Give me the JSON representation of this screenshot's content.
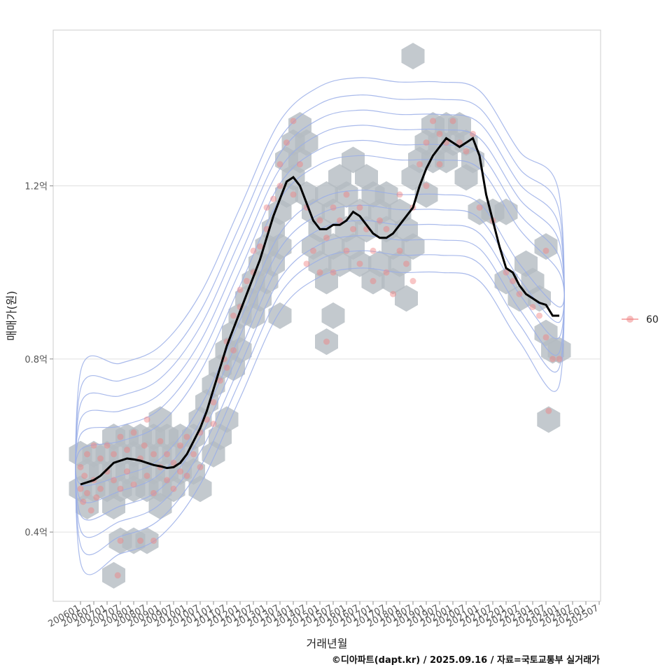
{
  "chart_data": {
    "type": "scatter",
    "xlabel": "거래년월",
    "ylabel": "매매가(원)",
    "caption": "©디아파트(dapt.kr) / 2025.09.16 / 자료=국토교통부 실거래가",
    "y_ticks": [
      {
        "value": 0.4,
        "label": "0.4억"
      },
      {
        "value": 0.8,
        "label": "0.8억"
      },
      {
        "value": 1.2,
        "label": "1.2억"
      }
    ],
    "ylim": [
      0.24,
      1.56
    ],
    "x_ticks": [
      "200601",
      "200607",
      "200701",
      "200707",
      "200801",
      "200807",
      "200901",
      "200907",
      "201001",
      "201007",
      "201101",
      "201107",
      "201201",
      "201207",
      "201301",
      "201307",
      "201401",
      "201407",
      "201501",
      "201507",
      "201601",
      "201607",
      "201701",
      "201707",
      "201801",
      "201807",
      "201901",
      "201907",
      "202001",
      "202007",
      "202101",
      "202107",
      "202201",
      "202207",
      "202301",
      "202307",
      "202401",
      "202407",
      "202501",
      "202507"
    ],
    "legend": {
      "label": "60",
      "color": "#f08080"
    },
    "trend_color": "#000000",
    "contour_color": "#9aaee8",
    "hex_color": "#b4bcc2",
    "trend_line": [
      [
        0,
        0.51
      ],
      [
        0.5,
        0.515
      ],
      [
        1,
        0.52
      ],
      [
        1.5,
        0.53
      ],
      [
        2,
        0.545
      ],
      [
        2.5,
        0.56
      ],
      [
        3,
        0.565
      ],
      [
        3.5,
        0.57
      ],
      [
        4,
        0.568
      ],
      [
        4.5,
        0.565
      ],
      [
        5,
        0.56
      ],
      [
        5.5,
        0.555
      ],
      [
        6,
        0.552
      ],
      [
        6.5,
        0.548
      ],
      [
        7,
        0.55
      ],
      [
        7.5,
        0.56
      ],
      [
        8,
        0.58
      ],
      [
        8.5,
        0.61
      ],
      [
        9,
        0.64
      ],
      [
        9.5,
        0.68
      ],
      [
        10,
        0.73
      ],
      [
        10.5,
        0.78
      ],
      [
        11,
        0.83
      ],
      [
        11.5,
        0.87
      ],
      [
        12,
        0.91
      ],
      [
        12.5,
        0.95
      ],
      [
        13,
        0.99
      ],
      [
        13.5,
        1.03
      ],
      [
        14,
        1.08
      ],
      [
        14.5,
        1.13
      ],
      [
        15,
        1.17
      ],
      [
        15.5,
        1.21
      ],
      [
        16,
        1.22
      ],
      [
        16.5,
        1.2
      ],
      [
        17,
        1.16
      ],
      [
        17.5,
        1.12
      ],
      [
        18,
        1.1
      ],
      [
        18.5,
        1.1
      ],
      [
        19,
        1.11
      ],
      [
        19.5,
        1.11
      ],
      [
        20,
        1.12
      ],
      [
        20.5,
        1.14
      ],
      [
        21,
        1.13
      ],
      [
        21.5,
        1.11
      ],
      [
        22,
        1.09
      ],
      [
        22.5,
        1.08
      ],
      [
        23,
        1.08
      ],
      [
        23.5,
        1.09
      ],
      [
        24,
        1.11
      ],
      [
        24.5,
        1.13
      ],
      [
        25,
        1.15
      ],
      [
        25.5,
        1.2
      ],
      [
        26,
        1.24
      ],
      [
        26.5,
        1.27
      ],
      [
        27,
        1.29
      ],
      [
        27.5,
        1.31
      ],
      [
        28,
        1.3
      ],
      [
        28.5,
        1.29
      ],
      [
        29,
        1.3
      ],
      [
        29.5,
        1.31
      ],
      [
        30,
        1.27
      ],
      [
        30.5,
        1.18
      ],
      [
        31,
        1.12
      ],
      [
        31.5,
        1.06
      ],
      [
        32,
        1.01
      ],
      [
        32.5,
        1.0
      ],
      [
        33,
        0.97
      ],
      [
        33.5,
        0.95
      ],
      [
        34,
        0.94
      ],
      [
        34.5,
        0.93
      ],
      [
        35,
        0.925
      ],
      [
        35.5,
        0.9
      ],
      [
        36,
        0.9
      ]
    ],
    "scatter_points": [
      [
        0,
        0.55
      ],
      [
        0,
        0.5
      ],
      [
        0.2,
        0.47
      ],
      [
        0.3,
        0.53
      ],
      [
        0.5,
        0.58
      ],
      [
        0.5,
        0.49
      ],
      [
        0.8,
        0.45
      ],
      [
        1,
        0.6
      ],
      [
        1,
        0.52
      ],
      [
        1.2,
        0.48
      ],
      [
        1.5,
        0.57
      ],
      [
        1.5,
        0.5
      ],
      [
        2,
        0.54
      ],
      [
        2,
        0.6
      ],
      [
        2.5,
        0.58
      ],
      [
        2.5,
        0.52
      ],
      [
        3,
        0.62
      ],
      [
        3,
        0.5
      ],
      [
        3.5,
        0.59
      ],
      [
        3.5,
        0.54
      ],
      [
        4,
        0.63
      ],
      [
        4,
        0.51
      ],
      [
        4.5,
        0.57
      ],
      [
        4.8,
        0.6
      ],
      [
        5,
        0.66
      ],
      [
        5,
        0.53
      ],
      [
        5.5,
        0.49
      ],
      [
        5.5,
        0.58
      ],
      [
        6,
        0.55
      ],
      [
        6,
        0.61
      ],
      [
        6.5,
        0.52
      ],
      [
        6.5,
        0.58
      ],
      [
        7,
        0.56
      ],
      [
        7,
        0.5
      ],
      [
        7.5,
        0.6
      ],
      [
        7.5,
        0.54
      ],
      [
        8,
        0.62
      ],
      [
        8,
        0.53
      ],
      [
        8.5,
        0.58
      ],
      [
        9,
        0.63
      ],
      [
        9,
        0.55
      ],
      [
        9.5,
        0.66
      ],
      [
        10,
        0.7
      ],
      [
        10,
        0.65
      ],
      [
        10.5,
        0.75
      ],
      [
        10.8,
        0.8
      ],
      [
        11,
        0.84
      ],
      [
        11,
        0.78
      ],
      [
        11.5,
        0.9
      ],
      [
        11.5,
        0.82
      ],
      [
        12,
        0.92
      ],
      [
        12,
        0.96
      ],
      [
        12.5,
        0.98
      ],
      [
        13,
        1.0
      ],
      [
        13,
        1.05
      ],
      [
        13.5,
        1.06
      ],
      [
        14,
        1.1
      ],
      [
        14,
        1.15
      ],
      [
        14.5,
        1.17
      ],
      [
        15,
        1.2
      ],
      [
        15,
        1.25
      ],
      [
        15.5,
        1.3
      ],
      [
        16,
        1.35
      ],
      [
        16,
        1.18
      ],
      [
        16.5,
        1.25
      ],
      [
        17,
        1.15
      ],
      [
        17,
        1.02
      ],
      [
        17.5,
        1.05
      ],
      [
        18,
        1.12
      ],
      [
        18,
        1.0
      ],
      [
        18.5,
        1.08
      ],
      [
        19,
        1.15
      ],
      [
        19,
        1.0
      ],
      [
        19.5,
        1.12
      ],
      [
        20,
        1.18
      ],
      [
        20,
        1.05
      ],
      [
        20.5,
        1.1
      ],
      [
        21,
        1.02
      ],
      [
        21,
        1.15
      ],
      [
        21.5,
        1.1
      ],
      [
        22,
        1.05
      ],
      [
        22,
        0.98
      ],
      [
        22.5,
        1.12
      ],
      [
        23,
        1.0
      ],
      [
        23,
        1.1
      ],
      [
        23.5,
        0.95
      ],
      [
        24,
        1.18
      ],
      [
        24,
        1.05
      ],
      [
        24.5,
        1.02
      ],
      [
        25,
        1.15
      ],
      [
        25,
        0.98
      ],
      [
        25.5,
        1.25
      ],
      [
        26,
        1.3
      ],
      [
        26,
        1.2
      ],
      [
        26.5,
        1.35
      ],
      [
        27,
        1.32
      ],
      [
        27,
        1.25
      ],
      [
        27.5,
        1.3
      ],
      [
        28,
        1.35
      ],
      [
        28.5,
        1.3
      ],
      [
        29,
        1.28
      ],
      [
        29.5,
        1.32
      ],
      [
        30,
        1.15
      ],
      [
        31,
        1.12
      ],
      [
        32,
        1.0
      ],
      [
        32.5,
        0.98
      ],
      [
        33,
        0.95
      ],
      [
        34,
        0.92
      ],
      [
        34.5,
        0.9
      ],
      [
        35,
        0.85
      ],
      [
        35,
        1.05
      ],
      [
        35.5,
        0.8
      ],
      [
        36,
        0.8
      ],
      [
        35.2,
        0.68
      ],
      [
        18.5,
        0.84
      ],
      [
        2.8,
        0.3
      ],
      [
        3,
        0.38
      ],
      [
        4.5,
        0.38
      ],
      [
        5.5,
        0.38
      ]
    ],
    "hex_centers": [
      [
        0,
        0.58
      ],
      [
        0,
        0.5
      ],
      [
        0.5,
        0.54
      ],
      [
        0.5,
        0.46
      ],
      [
        1,
        0.58
      ],
      [
        1,
        0.5
      ],
      [
        1.5,
        0.54
      ],
      [
        2,
        0.58
      ],
      [
        2,
        0.5
      ],
      [
        2.5,
        0.62
      ],
      [
        2.5,
        0.54
      ],
      [
        3,
        0.58
      ],
      [
        3,
        0.5
      ],
      [
        3.5,
        0.62
      ],
      [
        3.5,
        0.54
      ],
      [
        4,
        0.58
      ],
      [
        4,
        0.5
      ],
      [
        4.5,
        0.62
      ],
      [
        4.5,
        0.54
      ],
      [
        5,
        0.58
      ],
      [
        5,
        0.5
      ],
      [
        5.5,
        0.62
      ],
      [
        5.5,
        0.54
      ],
      [
        6,
        0.58
      ],
      [
        6,
        0.5
      ],
      [
        6.5,
        0.62
      ],
      [
        6.5,
        0.54
      ],
      [
        7,
        0.58
      ],
      [
        7,
        0.5
      ],
      [
        7.5,
        0.62
      ],
      [
        7.5,
        0.54
      ],
      [
        8,
        0.58
      ],
      [
        8.5,
        0.62
      ],
      [
        8.5,
        0.54
      ],
      [
        2.5,
        0.46
      ],
      [
        2.5,
        0.3
      ],
      [
        3,
        0.38
      ],
      [
        4,
        0.38
      ],
      [
        5,
        0.38
      ],
      [
        6,
        0.66
      ],
      [
        6,
        0.46
      ],
      [
        9,
        0.66
      ],
      [
        9,
        0.5
      ],
      [
        9.5,
        0.7
      ],
      [
        10,
        0.74
      ],
      [
        10,
        0.58
      ],
      [
        10.5,
        0.78
      ],
      [
        10.5,
        0.62
      ],
      [
        11,
        0.82
      ],
      [
        11,
        0.66
      ],
      [
        11.5,
        0.86
      ],
      [
        11.5,
        0.78
      ],
      [
        12,
        0.9
      ],
      [
        12,
        0.82
      ],
      [
        12.5,
        0.94
      ],
      [
        13,
        0.98
      ],
      [
        13,
        0.9
      ],
      [
        13.5,
        1.02
      ],
      [
        13.5,
        0.94
      ],
      [
        14,
        1.06
      ],
      [
        14,
        0.98
      ],
      [
        14.5,
        1.1
      ],
      [
        14.5,
        1.02
      ],
      [
        15,
        1.14
      ],
      [
        15,
        1.06
      ],
      [
        15.5,
        1.18
      ],
      [
        15.5,
        1.26
      ],
      [
        16,
        1.3
      ],
      [
        16,
        1.22
      ],
      [
        16.5,
        1.34
      ],
      [
        16.5,
        1.26
      ],
      [
        17,
        1.3
      ],
      [
        17,
        1.18
      ],
      [
        17.5,
        1.14
      ],
      [
        17.5,
        1.06
      ],
      [
        18,
        1.1
      ],
      [
        18,
        1.02
      ],
      [
        18.5,
        1.18
      ],
      [
        18.5,
        0.98
      ],
      [
        19,
        1.14
      ],
      [
        19,
        1.06
      ],
      [
        19.5,
        1.22
      ],
      [
        19.5,
        1.02
      ],
      [
        20,
        1.18
      ],
      [
        20,
        1.1
      ],
      [
        20.5,
        1.26
      ],
      [
        20.5,
        1.06
      ],
      [
        21,
        1.14
      ],
      [
        21,
        1.02
      ],
      [
        21.5,
        1.22
      ],
      [
        21.5,
        1.1
      ],
      [
        22,
        1.18
      ],
      [
        22,
        0.98
      ],
      [
        22.5,
        1.14
      ],
      [
        22.5,
        1.02
      ],
      [
        23,
        1.1
      ],
      [
        23,
        1.18
      ],
      [
        23.5,
        1.06
      ],
      [
        23.5,
        0.98
      ],
      [
        24,
        1.14
      ],
      [
        24,
        1.02
      ],
      [
        24.5,
        1.1
      ],
      [
        24.5,
        0.94
      ],
      [
        25,
        1.22
      ],
      [
        25,
        1.06
      ],
      [
        25.5,
        1.26
      ],
      [
        26,
        1.3
      ],
      [
        26,
        1.18
      ],
      [
        26.5,
        1.34
      ],
      [
        26.5,
        1.26
      ],
      [
        27,
        1.3
      ],
      [
        27.5,
        1.34
      ],
      [
        27.5,
        1.26
      ],
      [
        28,
        1.3
      ],
      [
        28.5,
        1.34
      ],
      [
        29,
        1.3
      ],
      [
        29,
        1.22
      ],
      [
        29.5,
        1.26
      ],
      [
        30,
        1.14
      ],
      [
        31,
        1.14
      ],
      [
        32,
        1.14
      ],
      [
        32,
        0.98
      ],
      [
        33,
        0.94
      ],
      [
        33.5,
        1.02
      ],
      [
        34,
        0.98
      ],
      [
        34.5,
        0.94
      ],
      [
        35,
        0.86
      ],
      [
        35,
        1.06
      ],
      [
        35.5,
        0.82
      ],
      [
        36,
        0.82
      ],
      [
        35.2,
        0.66
      ],
      [
        25,
        1.5
      ],
      [
        19,
        0.9
      ],
      [
        18.5,
        0.84
      ],
      [
        15,
        0.9
      ]
    ],
    "contours": [
      {
        "cy": [
          0.55,
          0.57,
          0.61,
          0.73,
          0.93,
          1.13,
          1.21,
          1.23,
          1.22,
          1.22,
          1.2,
          1.06,
          0.96
        ],
        "hw": 0.04
      },
      {
        "cy": [
          0.55,
          0.57,
          0.61,
          0.73,
          0.93,
          1.13,
          1.21,
          1.23,
          1.22,
          1.22,
          1.2,
          1.06,
          0.96
        ],
        "hw": 0.075
      },
      {
        "cy": [
          0.55,
          0.57,
          0.61,
          0.73,
          0.93,
          1.13,
          1.21,
          1.23,
          1.22,
          1.22,
          1.2,
          1.06,
          0.96
        ],
        "hw": 0.11
      },
      {
        "cy": [
          0.55,
          0.57,
          0.61,
          0.73,
          0.93,
          1.13,
          1.21,
          1.23,
          1.22,
          1.22,
          1.2,
          1.06,
          0.96
        ],
        "hw": 0.145
      },
      {
        "cy": [
          0.55,
          0.57,
          0.61,
          0.73,
          0.93,
          1.13,
          1.21,
          1.23,
          1.22,
          1.22,
          1.2,
          1.06,
          0.96
        ],
        "hw": 0.18
      },
      {
        "cy": [
          0.55,
          0.57,
          0.61,
          0.73,
          0.93,
          1.13,
          1.21,
          1.23,
          1.22,
          1.22,
          1.2,
          1.06,
          0.96
        ],
        "hw": 0.22
      }
    ]
  }
}
